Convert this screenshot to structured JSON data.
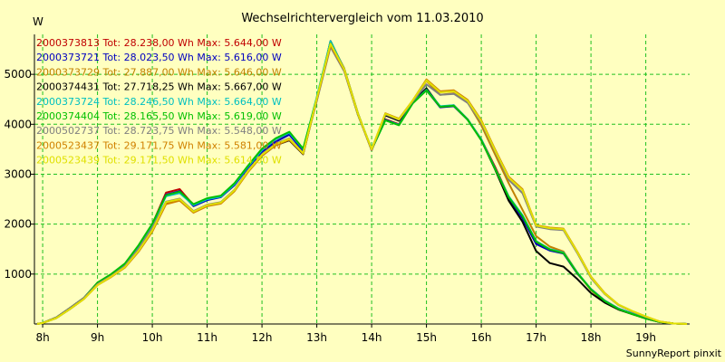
{
  "chart_data": {
    "type": "line",
    "title": "Wechselrichtervergleich vom 11.03.2010",
    "ylabel": "W",
    "footer": "SunnyReport pinxit",
    "ylim": [
      0,
      5800
    ],
    "y_ticks": [
      1000,
      2000,
      3000,
      4000,
      5000
    ],
    "x_range": [
      7.85,
      19.8
    ],
    "x_ticks": [
      {
        "x": 8,
        "label": "8h"
      },
      {
        "x": 9,
        "label": "9h"
      },
      {
        "x": 10,
        "label": "10h"
      },
      {
        "x": 11,
        "label": "11h"
      },
      {
        "x": 12,
        "label": "12h"
      },
      {
        "x": 13,
        "label": "13h"
      },
      {
        "x": 14,
        "label": "14h"
      },
      {
        "x": 15,
        "label": "15h"
      },
      {
        "x": 16,
        "label": "16h"
      },
      {
        "x": 17,
        "label": "17h"
      },
      {
        "x": 18,
        "label": "18h"
      },
      {
        "x": 19,
        "label": "19h"
      }
    ],
    "grid": true,
    "legend_position": "top-left",
    "x": [
      7.9,
      8.0,
      8.25,
      8.5,
      8.75,
      9.0,
      9.25,
      9.5,
      9.75,
      10.0,
      10.25,
      10.5,
      10.75,
      11.0,
      11.25,
      11.5,
      11.75,
      12.0,
      12.25,
      12.5,
      12.75,
      13.0,
      13.25,
      13.5,
      13.75,
      14.0,
      14.25,
      14.5,
      14.75,
      15.0,
      15.25,
      15.5,
      15.75,
      16.0,
      16.25,
      16.5,
      16.75,
      17.0,
      17.25,
      17.5,
      17.75,
      18.0,
      18.25,
      18.5,
      18.75,
      19.0,
      19.25,
      19.5,
      19.75
    ],
    "series": [
      {
        "name": "2000373813 Tot: 28.238,00 Wh Max: 5.644,00 W",
        "color": "#c00000",
        "values": [
          0,
          20,
          130,
          320,
          520,
          820,
          990,
          1200,
          1570,
          2000,
          2630,
          2700,
          2380,
          2500,
          2550,
          2800,
          3150,
          3450,
          3650,
          3800,
          3480,
          4500,
          5644,
          5100,
          4200,
          3500,
          4100,
          4000,
          4450,
          4700,
          4350,
          4380,
          4100,
          3700,
          3150,
          2550,
          2150,
          1620,
          1480,
          1420,
          1020,
          700,
          470,
          310,
          210,
          120,
          40,
          10,
          0
        ]
      },
      {
        "name": "2000373721 Tot: 28.023,50 Wh Max: 5.616,00 W",
        "color": "#0000c0",
        "values": [
          0,
          20,
          130,
          320,
          520,
          820,
          980,
          1190,
          1550,
          1990,
          2590,
          2660,
          2360,
          2480,
          2540,
          2780,
          3140,
          3450,
          3650,
          3790,
          3470,
          4480,
          5616,
          5080,
          4190,
          3490,
          4090,
          3990,
          4430,
          4680,
          4340,
          4360,
          4090,
          3690,
          3120,
          2520,
          2120,
          1600,
          1470,
          1410,
          1010,
          700,
          470,
          310,
          210,
          120,
          40,
          10,
          0
        ]
      },
      {
        "name": "2000373729 Tot: 27.887,00 Wh Max: 5.646,00 W",
        "color": "#c08000",
        "values": [
          0,
          20,
          120,
          300,
          500,
          780,
          950,
          1140,
          1460,
          1870,
          2430,
          2490,
          2240,
          2370,
          2420,
          2670,
          3060,
          3380,
          3590,
          3700,
          3410,
          4530,
          5646,
          5120,
          4220,
          3490,
          4200,
          4090,
          4470,
          4870,
          4590,
          4620,
          4440,
          3980,
          3400,
          2820,
          2290,
          1760,
          1550,
          1450,
          1030,
          680,
          450,
          300,
          200,
          110,
          40,
          10,
          0
        ]
      },
      {
        "name": "2000374431 Tot: 27.718,25 Wh Max: 5.667,00 W",
        "color": "#000000",
        "values": [
          0,
          20,
          130,
          320,
          520,
          800,
          950,
          1150,
          1500,
          1950,
          2420,
          2480,
          2240,
          2380,
          2430,
          2680,
          3060,
          3370,
          3580,
          3680,
          3400,
          4500,
          5667,
          5100,
          4210,
          3480,
          4180,
          4070,
          4450,
          4720,
          4350,
          4370,
          4100,
          3680,
          3100,
          2470,
          2050,
          1460,
          1220,
          1150,
          900,
          620,
          430,
          290,
          200,
          110,
          40,
          10,
          0
        ]
      },
      {
        "name": "2000373724 Tot: 28.246,50 Wh Max: 5.664,00 W",
        "color": "#00c0c0",
        "values": [
          0,
          20,
          120,
          300,
          510,
          820,
          990,
          1200,
          1560,
          1990,
          2560,
          2620,
          2380,
          2500,
          2550,
          2800,
          3160,
          3480,
          3700,
          3830,
          3500,
          4550,
          5664,
          5100,
          4210,
          3500,
          4080,
          3990,
          4430,
          4690,
          4360,
          4380,
          4100,
          3700,
          3120,
          2560,
          2180,
          1660,
          1500,
          1430,
          1030,
          700,
          470,
          310,
          210,
          120,
          40,
          10,
          0
        ]
      },
      {
        "name": "2000374404 Tot: 28.165,50 Wh Max: 5.619,00 W",
        "color": "#00c000",
        "values": [
          0,
          20,
          130,
          320,
          520,
          830,
          1000,
          1210,
          1580,
          2010,
          2580,
          2650,
          2400,
          2520,
          2570,
          2820,
          3180,
          3510,
          3720,
          3850,
          3510,
          4520,
          5619,
          5080,
          4190,
          3490,
          4080,
          3980,
          4420,
          4680,
          4350,
          4370,
          4090,
          3680,
          3110,
          2540,
          2160,
          1650,
          1490,
          1420,
          1020,
          690,
          460,
          300,
          200,
          110,
          40,
          10,
          0
        ]
      },
      {
        "name": "2000502737 Tot: 28.723,75 Wh Max: 5.548,00 W",
        "color": "#808080",
        "values": [
          0,
          20,
          130,
          320,
          520,
          800,
          960,
          1160,
          1510,
          1930,
          2450,
          2510,
          2260,
          2390,
          2440,
          2690,
          3080,
          3400,
          3610,
          3720,
          3430,
          4470,
          5548,
          5060,
          4190,
          3480,
          4200,
          4090,
          4460,
          4800,
          4590,
          4610,
          4430,
          4030,
          3460,
          2890,
          2620,
          1950,
          1900,
          1880,
          1420,
          920,
          600,
          380,
          250,
          140,
          50,
          10,
          0
        ]
      },
      {
        "name": "2000523437 Tot: 29.171,75 Wh Max: 5.581,00 W",
        "color": "#d08000",
        "values": [
          0,
          20,
          120,
          300,
          500,
          780,
          940,
          1130,
          1450,
          1850,
          2400,
          2470,
          2230,
          2360,
          2410,
          2660,
          3050,
          3370,
          3580,
          3690,
          3410,
          4500,
          5581,
          5090,
          4200,
          3490,
          4220,
          4110,
          4480,
          4900,
          4660,
          4680,
          4490,
          4080,
          3500,
          2950,
          2700,
          1980,
          1930,
          1910,
          1450,
          950,
          620,
          390,
          260,
          150,
          50,
          10,
          0
        ]
      },
      {
        "name": "2000523439 Tot: 29.171,50 Wh Max: 5.614,00 W",
        "color": "#e0e000",
        "values": [
          0,
          20,
          120,
          300,
          500,
          780,
          950,
          1140,
          1470,
          1880,
          2440,
          2500,
          2250,
          2380,
          2430,
          2680,
          3070,
          3390,
          3600,
          3710,
          3420,
          4520,
          5614,
          5100,
          4210,
          3500,
          4210,
          4100,
          4480,
          4880,
          4640,
          4660,
          4470,
          4060,
          3480,
          2930,
          2680,
          1970,
          1920,
          1900,
          1440,
          940,
          610,
          390,
          260,
          150,
          50,
          10,
          0
        ]
      }
    ]
  }
}
